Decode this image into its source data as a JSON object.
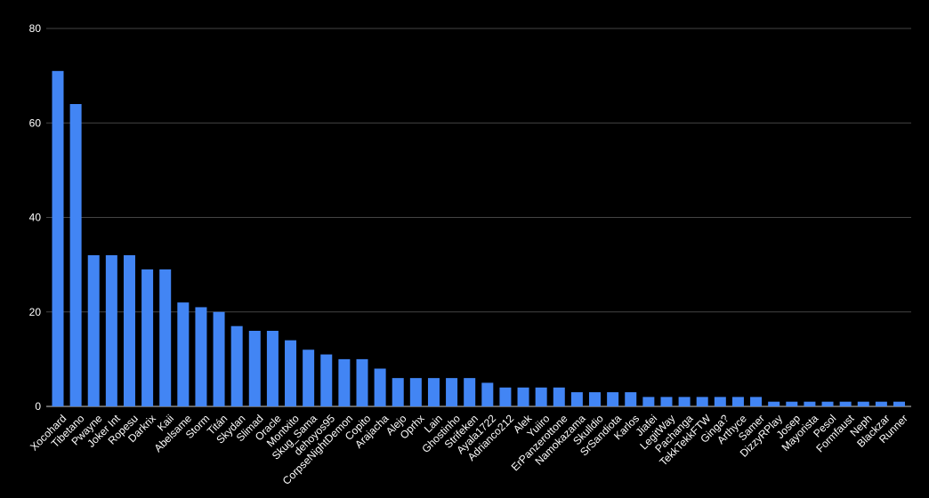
{
  "chart_data": {
    "type": "bar",
    "title": "",
    "xlabel": "",
    "ylabel": "",
    "ylim": [
      0,
      80
    ],
    "yticks": [
      0,
      20,
      40,
      60,
      80
    ],
    "grid": true,
    "legend": "none",
    "bar_color": "#4285f4",
    "background_color": "#000000",
    "text_color": "#ffffff",
    "gridline_color": "#444444",
    "categories": [
      "Xocohard",
      "Tibetano",
      "Pwayne",
      "Joker Int",
      "Ropesu",
      "Darkrix",
      "Kaii",
      "Abelsame",
      "Storm",
      "Titán",
      "Skydan",
      "Slimad",
      "Oracle",
      "Montxito",
      "Skug_Sama",
      "dehoyos95",
      "CorpseNightDemon",
      "Copito",
      "Arajacha",
      "Alejo",
      "Oprhx",
      "Lain",
      "Ghostinho",
      "Strifeken",
      "Ayala1722",
      "Adrianco212",
      "Alek",
      "Yuiiro",
      "ErPanzerottone",
      "Namokazama",
      "Skulldio",
      "SrSandiota",
      "Karlos",
      "Jiafei",
      "LegitWay",
      "Pachanga",
      "TekkTekkFTW",
      "Ginga?",
      "Arthyce",
      "Samer",
      "DizzyRPlay",
      "Josep",
      "Mayorista",
      "Pesol",
      "Formfaust",
      "Neph",
      "Blackzar",
      "Runner"
    ],
    "values": [
      71,
      64,
      32,
      32,
      32,
      29,
      29,
      22,
      21,
      20,
      17,
      16,
      16,
      14,
      12,
      11,
      10,
      10,
      8,
      6,
      6,
      6,
      6,
      6,
      5,
      4,
      4,
      4,
      4,
      3,
      3,
      3,
      3,
      2,
      2,
      2,
      2,
      2,
      2,
      2,
      1,
      1,
      1,
      1,
      1,
      1,
      1,
      1
    ]
  }
}
